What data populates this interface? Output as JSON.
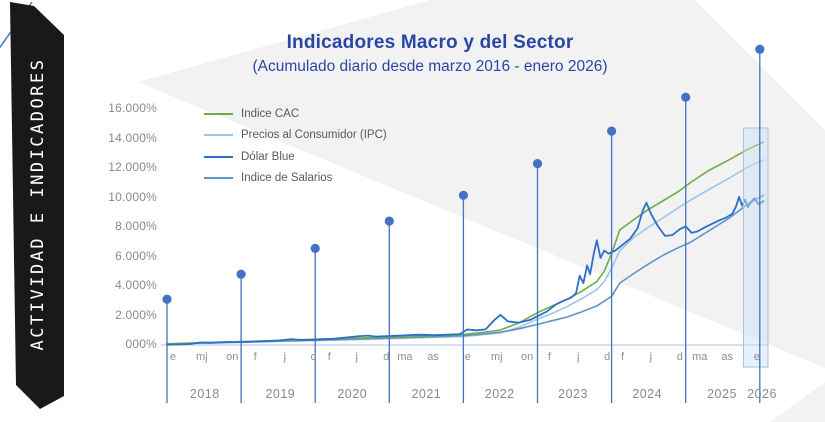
{
  "sidebar": {
    "label": "ACTIVIDAD E INDICADORES"
  },
  "colors": {
    "background_wedge": "#F2F2F3",
    "corner_line": "#4472C4",
    "marker": "#4472C4",
    "baseline": "#B9CFE7",
    "title_text": "#2A46A5",
    "axis_text": "#8A8A8A",
    "legend_text": "#595959",
    "band_fill": "#CBE0F1",
    "band_stroke": "#9FC5E3",
    "ribbon_bg": "#191919",
    "ribbon_text": "#FFFFFF"
  },
  "chart_data": {
    "type": "line",
    "title": "Indicadores Macro y del Sector",
    "subtitle": "(Acumulado diario desde marzo 2016 - enero 2026)",
    "x_range_years": [
      2018,
      2026.12
    ],
    "ylim": [
      0,
      16000
    ],
    "grid": false,
    "legend_position": "top-left",
    "y_ticks": [
      {
        "label": "000%",
        "value": 0
      },
      {
        "label": "2.000%",
        "value": 2000
      },
      {
        "label": "4.000%",
        "value": 4000
      },
      {
        "label": "6.000%",
        "value": 6000
      },
      {
        "label": "8.000%",
        "value": 8000
      },
      {
        "label": "10.000%",
        "value": 10000
      },
      {
        "label": "12.000%",
        "value": 12000
      },
      {
        "label": "14.000%",
        "value": 14000
      },
      {
        "label": "16.000%",
        "value": 16000
      }
    ],
    "x_month_labels": [
      {
        "m": "e",
        "t": 2018.08
      },
      {
        "m": "mj",
        "t": 2018.47
      },
      {
        "m": "on",
        "t": 2018.88
      },
      {
        "m": "f",
        "t": 2019.19
      },
      {
        "m": "j",
        "t": 2019.59
      },
      {
        "m": "d",
        "t": 2019.98
      },
      {
        "m": "f",
        "t": 2020.19
      },
      {
        "m": "j",
        "t": 2020.56
      },
      {
        "m": "d",
        "t": 2020.96
      },
      {
        "m": "ma",
        "t": 2021.21
      },
      {
        "m": "as",
        "t": 2021.59
      },
      {
        "m": "e",
        "t": 2022.06
      },
      {
        "m": "mj",
        "t": 2022.45
      },
      {
        "m": "on",
        "t": 2022.86
      },
      {
        "m": "f",
        "t": 2023.16
      },
      {
        "m": "j",
        "t": 2023.55
      },
      {
        "m": "d",
        "t": 2023.94
      },
      {
        "m": "f",
        "t": 2024.15
      },
      {
        "m": "j",
        "t": 2024.53
      },
      {
        "m": "d",
        "t": 2024.92
      },
      {
        "m": "ma",
        "t": 2025.19
      },
      {
        "m": "as",
        "t": 2025.56
      },
      {
        "m": "e",
        "t": 2025.96
      }
    ],
    "x_year_labels": [
      {
        "y": "2018",
        "t": 2018.51
      },
      {
        "y": "2019",
        "t": 2019.53
      },
      {
        "y": "2020",
        "t": 2020.5
      },
      {
        "y": "2021",
        "t": 2021.5
      },
      {
        "y": "2022",
        "t": 2022.49
      },
      {
        "y": "2023",
        "t": 2023.48
      },
      {
        "y": "2024",
        "t": 2024.48
      },
      {
        "y": "2025",
        "t": 2025.49
      },
      {
        "y": "2026",
        "t": 2026.03
      }
    ],
    "year_markers": [
      {
        "year": 2018,
        "value": 3100
      },
      {
        "year": 2019,
        "value": 4800
      },
      {
        "year": 2020,
        "value": 6550
      },
      {
        "year": 2021,
        "value": 8400
      },
      {
        "year": 2022,
        "value": 10150
      },
      {
        "year": 2023,
        "value": 12300
      },
      {
        "year": 2024,
        "value": 14500
      },
      {
        "year": 2025,
        "value": 16800
      },
      {
        "year": 2026,
        "value": 20050
      }
    ],
    "highlight_band": {
      "from_t": 2025.78,
      "to_t": 2026.11
    },
    "series": [
      {
        "name": "Indice CAC",
        "color": "#70AD47",
        "width": 1.6,
        "points": [
          [
            2018.0,
            80
          ],
          [
            2018.5,
            160
          ],
          [
            2019.0,
            230
          ],
          [
            2019.5,
            310
          ],
          [
            2020.0,
            390
          ],
          [
            2020.5,
            460
          ],
          [
            2021.0,
            530
          ],
          [
            2021.5,
            610
          ],
          [
            2022.0,
            720
          ],
          [
            2022.25,
            850
          ],
          [
            2022.5,
            1020
          ],
          [
            2022.75,
            1500
          ],
          [
            2023.0,
            2200
          ],
          [
            2023.2,
            2650
          ],
          [
            2023.4,
            3100
          ],
          [
            2023.6,
            3650
          ],
          [
            2023.8,
            4300
          ],
          [
            2023.9,
            5000
          ],
          [
            2024.0,
            6200
          ],
          [
            2024.11,
            7800
          ],
          [
            2024.3,
            8500
          ],
          [
            2024.5,
            9200
          ],
          [
            2024.7,
            9800
          ],
          [
            2024.9,
            10400
          ],
          [
            2025.06,
            11000
          ],
          [
            2025.3,
            11800
          ],
          [
            2025.6,
            12600
          ],
          [
            2025.85,
            13300
          ],
          [
            2026.05,
            13750
          ]
        ]
      },
      {
        "name": "Precios al Consumidor (IPC)",
        "color": "#9DC5E8",
        "width": 1.6,
        "points": [
          [
            2018.0,
            60
          ],
          [
            2018.5,
            120
          ],
          [
            2019.0,
            180
          ],
          [
            2019.5,
            240
          ],
          [
            2020.0,
            300
          ],
          [
            2020.5,
            360
          ],
          [
            2021.0,
            430
          ],
          [
            2021.5,
            500
          ],
          [
            2022.0,
            580
          ],
          [
            2022.25,
            690
          ],
          [
            2022.5,
            830
          ],
          [
            2022.75,
            1200
          ],
          [
            2023.0,
            1750
          ],
          [
            2023.2,
            2150
          ],
          [
            2023.4,
            2600
          ],
          [
            2023.6,
            3150
          ],
          [
            2023.8,
            3750
          ],
          [
            2023.9,
            4300
          ],
          [
            2024.0,
            5200
          ],
          [
            2024.11,
            6400
          ],
          [
            2024.3,
            7300
          ],
          [
            2024.5,
            8000
          ],
          [
            2024.7,
            8650
          ],
          [
            2024.9,
            9300
          ],
          [
            2025.06,
            9800
          ],
          [
            2025.3,
            10500
          ],
          [
            2025.6,
            11350
          ],
          [
            2025.85,
            12100
          ],
          [
            2026.05,
            12550
          ]
        ]
      },
      {
        "name": "Dólar Blue",
        "color": "#2E6FC8",
        "width": 1.8,
        "points": [
          [
            2018.0,
            20
          ],
          [
            2018.3,
            60
          ],
          [
            2018.45,
            170
          ],
          [
            2018.6,
            150
          ],
          [
            2018.8,
            200
          ],
          [
            2019.0,
            200
          ],
          [
            2019.3,
            250
          ],
          [
            2019.5,
            300
          ],
          [
            2019.68,
            400
          ],
          [
            2019.8,
            340
          ],
          [
            2020.0,
            350
          ],
          [
            2020.25,
            420
          ],
          [
            2020.45,
            520
          ],
          [
            2020.6,
            600
          ],
          [
            2020.72,
            640
          ],
          [
            2020.82,
            570
          ],
          [
            2021.0,
            610
          ],
          [
            2021.2,
            650
          ],
          [
            2021.4,
            700
          ],
          [
            2021.6,
            665
          ],
          [
            2021.8,
            700
          ],
          [
            2021.95,
            740
          ],
          [
            2022.05,
            1050
          ],
          [
            2022.18,
            1000
          ],
          [
            2022.3,
            1060
          ],
          [
            2022.42,
            1700
          ],
          [
            2022.5,
            2050
          ],
          [
            2022.6,
            1600
          ],
          [
            2022.75,
            1520
          ],
          [
            2022.9,
            1700
          ],
          [
            2023.0,
            1950
          ],
          [
            2023.12,
            2250
          ],
          [
            2023.25,
            2750
          ],
          [
            2023.35,
            3000
          ],
          [
            2023.45,
            3200
          ],
          [
            2023.52,
            3500
          ],
          [
            2023.57,
            4700
          ],
          [
            2023.62,
            4200
          ],
          [
            2023.67,
            5400
          ],
          [
            2023.71,
            4800
          ],
          [
            2023.76,
            6200
          ],
          [
            2023.8,
            7100
          ],
          [
            2023.85,
            5900
          ],
          [
            2023.9,
            6400
          ],
          [
            2023.96,
            6200
          ],
          [
            2024.05,
            6400
          ],
          [
            2024.15,
            6800
          ],
          [
            2024.25,
            7200
          ],
          [
            2024.35,
            7900
          ],
          [
            2024.42,
            9100
          ],
          [
            2024.47,
            9650
          ],
          [
            2024.53,
            8900
          ],
          [
            2024.62,
            8100
          ],
          [
            2024.72,
            7400
          ],
          [
            2024.82,
            7450
          ],
          [
            2024.92,
            7850
          ],
          [
            2025.0,
            8050
          ],
          [
            2025.08,
            7600
          ],
          [
            2025.16,
            7700
          ],
          [
            2025.25,
            7950
          ],
          [
            2025.35,
            8200
          ],
          [
            2025.45,
            8450
          ],
          [
            2025.55,
            8650
          ],
          [
            2025.63,
            8900
          ],
          [
            2025.68,
            9400
          ],
          [
            2025.72,
            10050
          ],
          [
            2025.76,
            9450
          ],
          [
            2025.8,
            9850
          ],
          [
            2025.84,
            9350
          ],
          [
            2025.89,
            9750
          ],
          [
            2025.93,
            9950
          ],
          [
            2025.98,
            9550
          ],
          [
            2026.05,
            9750
          ]
        ]
      },
      {
        "name": "Indice de Salarios",
        "color": "#5F94C8",
        "width": 1.6,
        "points": [
          [
            2018.0,
            70
          ],
          [
            2018.5,
            135
          ],
          [
            2019.0,
            200
          ],
          [
            2019.5,
            265
          ],
          [
            2020.0,
            330
          ],
          [
            2020.5,
            395
          ],
          [
            2021.0,
            465
          ],
          [
            2021.5,
            540
          ],
          [
            2022.0,
            640
          ],
          [
            2022.25,
            740
          ],
          [
            2022.5,
            870
          ],
          [
            2022.75,
            1100
          ],
          [
            2023.0,
            1400
          ],
          [
            2023.2,
            1650
          ],
          [
            2023.4,
            1900
          ],
          [
            2023.6,
            2250
          ],
          [
            2023.8,
            2650
          ],
          [
            2024.0,
            3300
          ],
          [
            2024.11,
            4200
          ],
          [
            2024.3,
            4850
          ],
          [
            2024.5,
            5500
          ],
          [
            2024.7,
            6100
          ],
          [
            2024.9,
            6600
          ],
          [
            2025.06,
            6950
          ],
          [
            2025.3,
            7700
          ],
          [
            2025.6,
            8650
          ],
          [
            2025.85,
            9600
          ],
          [
            2026.05,
            10150
          ]
        ]
      }
    ]
  }
}
